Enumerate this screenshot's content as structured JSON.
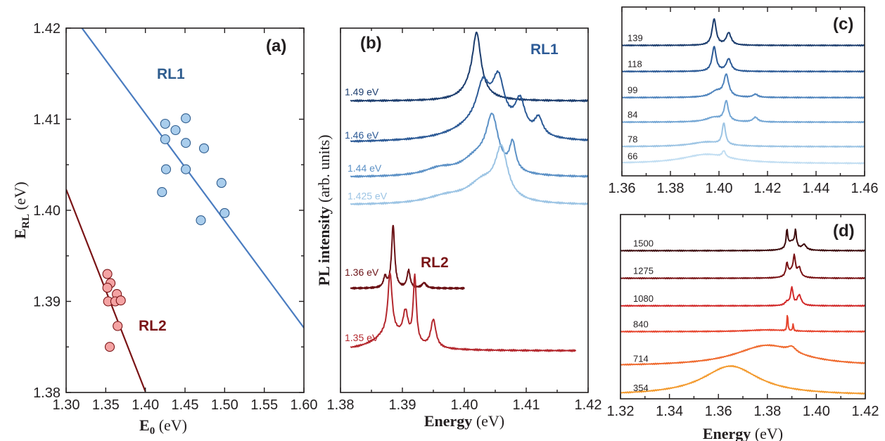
{
  "chart_data": [
    {
      "panel": "(a)",
      "type": "scatter",
      "xlabel": "E",
      "xlabel_sub": "0",
      "xlabel_unit": " (eV)",
      "ylabel": "E",
      "ylabel_sub": "RL",
      "ylabel_unit": " (eV)",
      "xlim": [
        1.3,
        1.6
      ],
      "ylim": [
        1.38,
        1.42
      ],
      "xticks": [
        "1.30",
        "1.35",
        "1.40",
        "1.45",
        "1.50",
        "1.55",
        "1.60"
      ],
      "yticks": [
        "1.38",
        "1.39",
        "1.40",
        "1.41",
        "1.42"
      ],
      "series": [
        {
          "name": "RL1",
          "color": "#2e5c8e",
          "fill": "#a9cdec",
          "points": [
            [
              1.425,
              1.4095
            ],
            [
              1.438,
              1.4088
            ],
            [
              1.451,
              1.4101
            ],
            [
              1.425,
              1.4078
            ],
            [
              1.451,
              1.4074
            ],
            [
              1.474,
              1.4068
            ],
            [
              1.426,
              1.4045
            ],
            [
              1.451,
              1.4045
            ],
            [
              1.496,
              1.403
            ],
            [
              1.421,
              1.402
            ],
            [
              1.5,
              1.3997
            ],
            [
              1.47,
              1.3989
            ]
          ],
          "fit_line": [
            [
              1.32,
              1.42
            ],
            [
              1.6,
              1.3871
            ]
          ]
        },
        {
          "name": "RL2",
          "color": "#7a1416",
          "fill": "#f4a3a3",
          "points": [
            [
              1.352,
              1.393
            ],
            [
              1.356,
              1.392
            ],
            [
              1.352,
              1.3915
            ],
            [
              1.364,
              1.3908
            ],
            [
              1.353,
              1.39
            ],
            [
              1.362,
              1.39
            ],
            [
              1.369,
              1.3901
            ],
            [
              1.365,
              1.3873
            ],
            [
              1.355,
              1.385
            ]
          ],
          "fit_line": [
            [
              1.3,
              1.4023
            ],
            [
              1.4,
              1.3801
            ]
          ]
        }
      ]
    },
    {
      "panel": "(b)",
      "type": "line",
      "xlabel": "Energy",
      "xlabel_unit": " (eV)",
      "ylabel": "PL intensity",
      "ylabel_unit": " (arb. units)",
      "xlim": [
        1.38,
        1.42
      ],
      "xticks": [
        "1.38",
        "1.39",
        "1.40",
        "1.41",
        "1.42"
      ],
      "group_labels": [
        "RL1",
        "RL2"
      ],
      "series": [
        {
          "name": "1.49 eV",
          "color": "#1c3d6e",
          "baseline": 0.84,
          "x_range": [
            1.3816,
            1.42
          ],
          "peaks": [
            [
              1.402,
              0.16,
              0.0008
            ],
            [
              1.4015,
              0.04,
              0.002
            ]
          ]
        },
        {
          "name": "1.46 eV",
          "color": "#2c5a96",
          "baseline": 0.72,
          "x_range": [
            1.3816,
            1.42
          ],
          "peaks": [
            [
              1.4055,
              0.13,
              0.0012
            ],
            [
              1.403,
              0.1,
              0.0012
            ],
            [
              1.409,
              0.09,
              0.001
            ],
            [
              1.412,
              0.05,
              0.0008
            ],
            [
              1.403,
              0.06,
              0.005
            ]
          ]
        },
        {
          "name": "1.44 eV",
          "color": "#5c91c6",
          "baseline": 0.62,
          "x_range": [
            1.3816,
            1.42
          ],
          "peaks": [
            [
              1.4045,
              0.15,
              0.0012
            ],
            [
              1.4078,
              0.08,
              0.0006
            ],
            [
              1.402,
              0.05,
              0.003
            ],
            [
              1.396,
              0.02,
              0.003
            ]
          ]
        },
        {
          "name": "1.425 eV",
          "color": "#9cc4e4",
          "baseline": 0.54,
          "x_range": [
            1.3816,
            1.42
          ],
          "peaks": [
            [
              1.406,
              0.14,
              0.0012
            ],
            [
              1.403,
              0.06,
              0.003
            ],
            [
              1.397,
              0.02,
              0.004
            ]
          ]
        },
        {
          "name": "1.36 eV",
          "color": "#6b1216",
          "baseline": 0.3,
          "x_range": [
            1.3816,
            1.4
          ],
          "peaks": [
            [
              1.3885,
              0.18,
              0.0003
            ],
            [
              1.391,
              0.05,
              0.0003
            ],
            [
              1.3872,
              0.03,
              0.0003
            ],
            [
              1.3935,
              0.015,
              0.0004
            ]
          ]
        },
        {
          "name": "1.35 eV",
          "color": "#b4282e",
          "baseline": 0.12,
          "x_range": [
            1.3816,
            1.418
          ],
          "peaks": [
            [
              1.392,
              0.19,
              0.0003
            ],
            [
              1.388,
              0.17,
              0.0004
            ],
            [
              1.3905,
              0.08,
              0.0005
            ],
            [
              1.395,
              0.08,
              0.0005
            ],
            [
              1.388,
              0.05,
              0.003
            ]
          ]
        }
      ]
    },
    {
      "panel": "(c)",
      "type": "line",
      "xlim": [
        1.36,
        1.46
      ],
      "xticks": [
        "1.36",
        "1.38",
        "1.40",
        "1.42",
        "1.44",
        "1.46"
      ],
      "series": [
        {
          "name": "139",
          "color": "#1c3d6e",
          "baseline": 0.8,
          "peaks": [
            [
              1.398,
              0.17,
              0.001
            ],
            [
              1.404,
              0.08,
              0.0012
            ]
          ]
        },
        {
          "name": "118",
          "color": "#2c5a96",
          "baseline": 0.63,
          "peaks": [
            [
              1.398,
              0.16,
              0.001
            ],
            [
              1.404,
              0.08,
              0.0012
            ]
          ]
        },
        {
          "name": "99",
          "color": "#4f84bd",
          "baseline": 0.46,
          "peaks": [
            [
              1.403,
              0.14,
              0.0012
            ],
            [
              1.399,
              0.04,
              0.003
            ],
            [
              1.415,
              0.02,
              0.0012
            ]
          ]
        },
        {
          "name": "84",
          "color": "#74a6d4",
          "baseline": 0.3,
          "peaks": [
            [
              1.403,
              0.13,
              0.001
            ],
            [
              1.398,
              0.03,
              0.004
            ],
            [
              1.415,
              0.03,
              0.0012
            ]
          ]
        },
        {
          "name": "78",
          "color": "#9cc4e4",
          "baseline": 0.14,
          "peaks": [
            [
              1.402,
              0.14,
              0.0008
            ],
            [
              1.395,
              0.03,
              0.008
            ]
          ]
        },
        {
          "name": "66",
          "color": "#c2def2",
          "baseline": 0.03,
          "peaks": [
            [
              1.402,
              0.04,
              0.0008
            ],
            [
              1.395,
              0.06,
              0.012
            ]
          ]
        }
      ]
    },
    {
      "panel": "(d)",
      "type": "line",
      "xlabel": "Energy",
      "xlabel_unit": " (eV)",
      "xlim": [
        1.32,
        1.42
      ],
      "xticks": [
        "1.32",
        "1.34",
        "1.36",
        "1.38",
        "1.40",
        "1.42"
      ],
      "series": [
        {
          "name": "1500",
          "color": "#3d0a0c",
          "baseline": 0.84,
          "peaks": [
            [
              1.388,
              0.1,
              0.0004
            ],
            [
              1.3915,
              0.09,
              0.0004
            ],
            [
              1.39,
              0.05,
              0.002
            ],
            [
              1.395,
              0.03,
              0.001
            ]
          ]
        },
        {
          "name": "1275",
          "color": "#7a1416",
          "baseline": 0.68,
          "peaks": [
            [
              1.391,
              0.1,
              0.0005
            ],
            [
              1.388,
              0.07,
              0.0005
            ],
            [
              1.393,
              0.05,
              0.0008
            ],
            [
              1.39,
              0.04,
              0.002
            ]
          ]
        },
        {
          "name": "1080",
          "color": "#d22a2a",
          "baseline": 0.52,
          "peaks": [
            [
              1.39,
              0.1,
              0.0006
            ],
            [
              1.393,
              0.06,
              0.001
            ],
            [
              1.388,
              0.02,
              0.001
            ]
          ]
        },
        {
          "name": "840",
          "color": "#e6452e",
          "baseline": 0.37,
          "peaks": [
            [
              1.3882,
              0.11,
              0.0002
            ],
            [
              1.3905,
              0.04,
              0.0002
            ],
            [
              1.38,
              0.01,
              0.01
            ]
          ]
        },
        {
          "name": "714",
          "color": "#ef6a2e",
          "baseline": 0.17,
          "peaks": [
            [
              1.38,
              0.12,
              0.016
            ],
            [
              1.39,
              0.03,
              0.002
            ]
          ]
        },
        {
          "name": "354",
          "color": "#f39a2e",
          "baseline": 0.0,
          "peaks": [
            [
              1.365,
              0.17,
              0.014
            ]
          ]
        }
      ]
    }
  ]
}
